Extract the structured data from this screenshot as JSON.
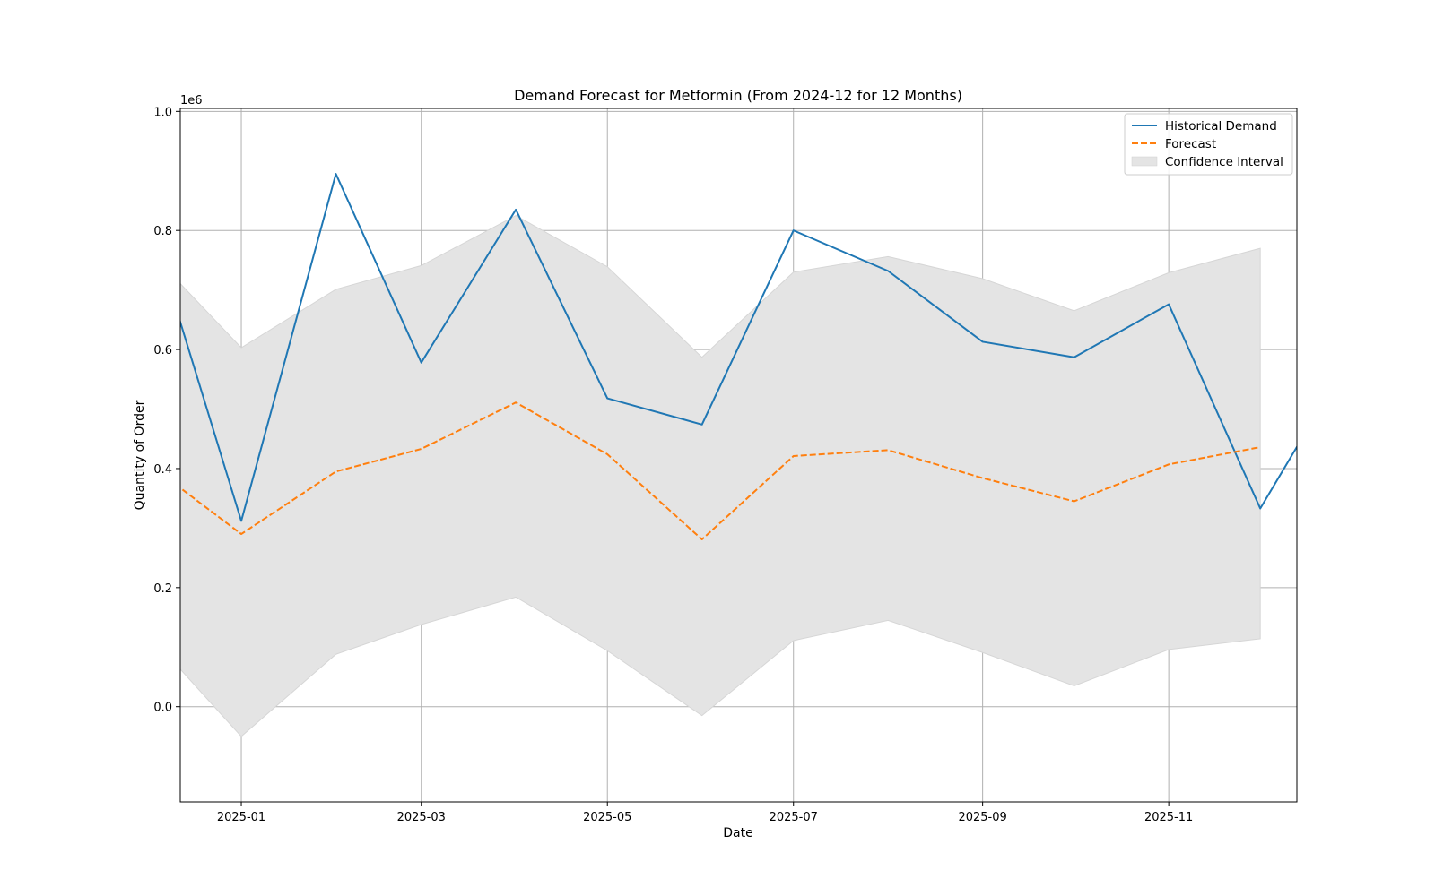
{
  "chart_data": {
    "type": "line",
    "title": "Demand Forecast for Metformin (From 2024-12 for 12 Months)",
    "xlabel": "Date",
    "ylabel": "Quantity of Order",
    "y_offset_label": "1e6",
    "xlim": [
      "2024-12-12",
      "2025-12-13"
    ],
    "ylim": [
      -0.16,
      1.005
    ],
    "grid": true,
    "legend_placement": "top-right",
    "x_ticks": [
      {
        "value": "2025-01-01",
        "label": "2025-01"
      },
      {
        "value": "2025-03-01",
        "label": "2025-03"
      },
      {
        "value": "2025-05-01",
        "label": "2025-05"
      },
      {
        "value": "2025-07-01",
        "label": "2025-07"
      },
      {
        "value": "2025-09-01",
        "label": "2025-09"
      },
      {
        "value": "2025-11-01",
        "label": "2025-11"
      }
    ],
    "y_ticks": [
      {
        "value": 0.0,
        "label": "0.0"
      },
      {
        "value": 0.2,
        "label": "0.2"
      },
      {
        "value": 0.4,
        "label": "0.4"
      },
      {
        "value": 0.6,
        "label": "0.6"
      },
      {
        "value": 0.8,
        "label": "0.8"
      },
      {
        "value": 1.0,
        "label": "1.0"
      }
    ],
    "series": [
      {
        "name": "Historical Demand",
        "style": "solid",
        "color": "#1f77b4",
        "x": [
          "2024-12-01",
          "2025-01-01",
          "2025-02-01",
          "2025-03-01",
          "2025-04-01",
          "2025-05-01",
          "2025-06-01",
          "2025-07-01",
          "2025-08-01",
          "2025-09-01",
          "2025-10-01",
          "2025-11-01",
          "2025-12-01",
          "2026-01-01"
        ],
        "values": [
          0.83,
          0.312,
          0.895,
          0.578,
          0.835,
          0.518,
          0.474,
          0.8,
          0.732,
          0.613,
          0.587,
          0.676,
          0.333,
          0.6
        ]
      },
      {
        "name": "Forecast",
        "style": "dashed",
        "color": "#ff7f0e",
        "x": [
          "2024-12-01",
          "2025-01-01",
          "2025-02-01",
          "2025-03-01",
          "2025-04-01",
          "2025-05-01",
          "2025-06-01",
          "2025-07-01",
          "2025-08-01",
          "2025-09-01",
          "2025-10-01",
          "2025-11-01",
          "2025-12-01"
        ],
        "values": [
          0.41,
          0.29,
          0.395,
          0.433,
          0.511,
          0.424,
          0.281,
          0.421,
          0.431,
          0.384,
          0.345,
          0.407,
          0.436
        ]
      }
    ],
    "confidence_interval": {
      "name": "Confidence Interval",
      "color": "#e4e4e4",
      "x": [
        "2024-12-01",
        "2025-01-01",
        "2025-02-01",
        "2025-03-01",
        "2025-04-01",
        "2025-05-01",
        "2025-06-01",
        "2025-07-01",
        "2025-08-01",
        "2025-09-01",
        "2025-10-01",
        "2025-11-01",
        "2025-12-01"
      ],
      "upper": [
        0.77,
        0.603,
        0.701,
        0.741,
        0.825,
        0.739,
        0.587,
        0.73,
        0.756,
        0.719,
        0.665,
        0.729,
        0.77
      ],
      "lower": [
        0.125,
        -0.05,
        0.088,
        0.138,
        0.184,
        0.094,
        -0.015,
        0.111,
        0.145,
        0.091,
        0.035,
        0.096,
        0.114
      ]
    }
  }
}
